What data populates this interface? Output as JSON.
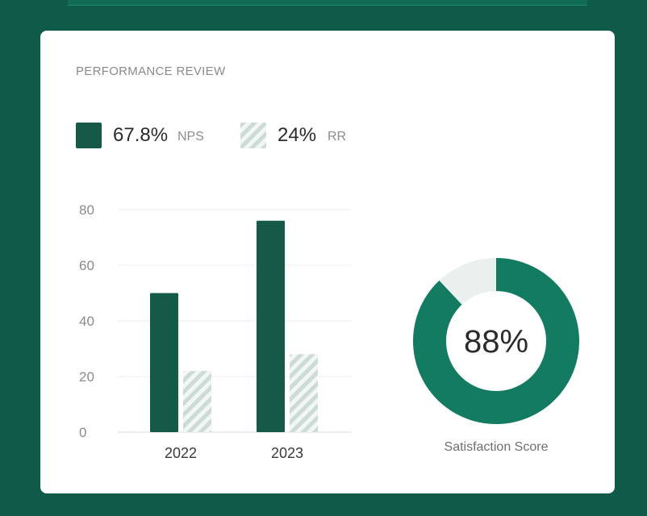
{
  "card": {
    "title": "PERFORMANCE REVIEW"
  },
  "legend": [
    {
      "value": "67.8%",
      "name": "NPS"
    },
    {
      "value": "24%",
      "name": "RR"
    }
  ],
  "chart_data": [
    {
      "type": "bar",
      "categories": [
        "2022",
        "2023"
      ],
      "series": [
        {
          "name": "NPS",
          "values": [
            50,
            76
          ],
          "color": "#155a48",
          "pattern": "solid"
        },
        {
          "name": "RR",
          "values": [
            22,
            28
          ],
          "color": "#cddbd6",
          "pattern": "hatched"
        }
      ],
      "yticks": [
        0,
        20,
        40,
        60,
        80
      ],
      "ylim": [
        0,
        80
      ],
      "grid": true
    },
    {
      "type": "pie",
      "style": "donut",
      "values": [
        88,
        12
      ],
      "colors": [
        "#127b62",
        "#e9f0ee"
      ],
      "center_label": "88%",
      "label": "Satisfaction Score"
    }
  ]
}
